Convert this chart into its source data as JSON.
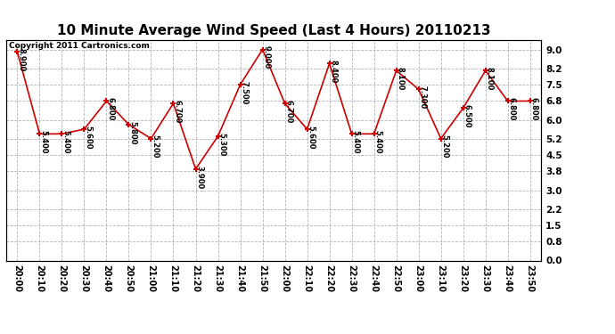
{
  "title": "10 Minute Average Wind Speed (Last 4 Hours) 20110213",
  "copyright": "Copyright 2011 Cartronics.com",
  "times": [
    "20:00",
    "20:10",
    "20:20",
    "20:30",
    "20:40",
    "20:50",
    "21:00",
    "21:10",
    "21:20",
    "21:30",
    "21:40",
    "21:50",
    "22:00",
    "22:10",
    "22:20",
    "22:30",
    "22:40",
    "22:50",
    "23:00",
    "23:10",
    "23:20",
    "23:30",
    "23:40",
    "23:50"
  ],
  "values": [
    8.9,
    5.4,
    5.4,
    5.6,
    6.8,
    5.8,
    5.2,
    6.7,
    3.9,
    5.3,
    7.5,
    9.0,
    6.7,
    5.6,
    8.4,
    5.4,
    5.4,
    8.1,
    7.3,
    5.2,
    6.5,
    8.1,
    6.8,
    6.8
  ],
  "line_color": "#cc0000",
  "marker": "+",
  "marker_size": 5,
  "marker_color": "#cc0000",
  "bg_color": "#ffffff",
  "grid_color": "#aaaaaa",
  "ylim": [
    0.0,
    9.4
  ],
  "yticks": [
    0.0,
    0.8,
    1.5,
    2.2,
    3.0,
    3.8,
    4.5,
    5.2,
    6.0,
    6.8,
    7.5,
    8.2,
    9.0
  ],
  "label_fontsize": 7.5,
  "title_fontsize": 11
}
